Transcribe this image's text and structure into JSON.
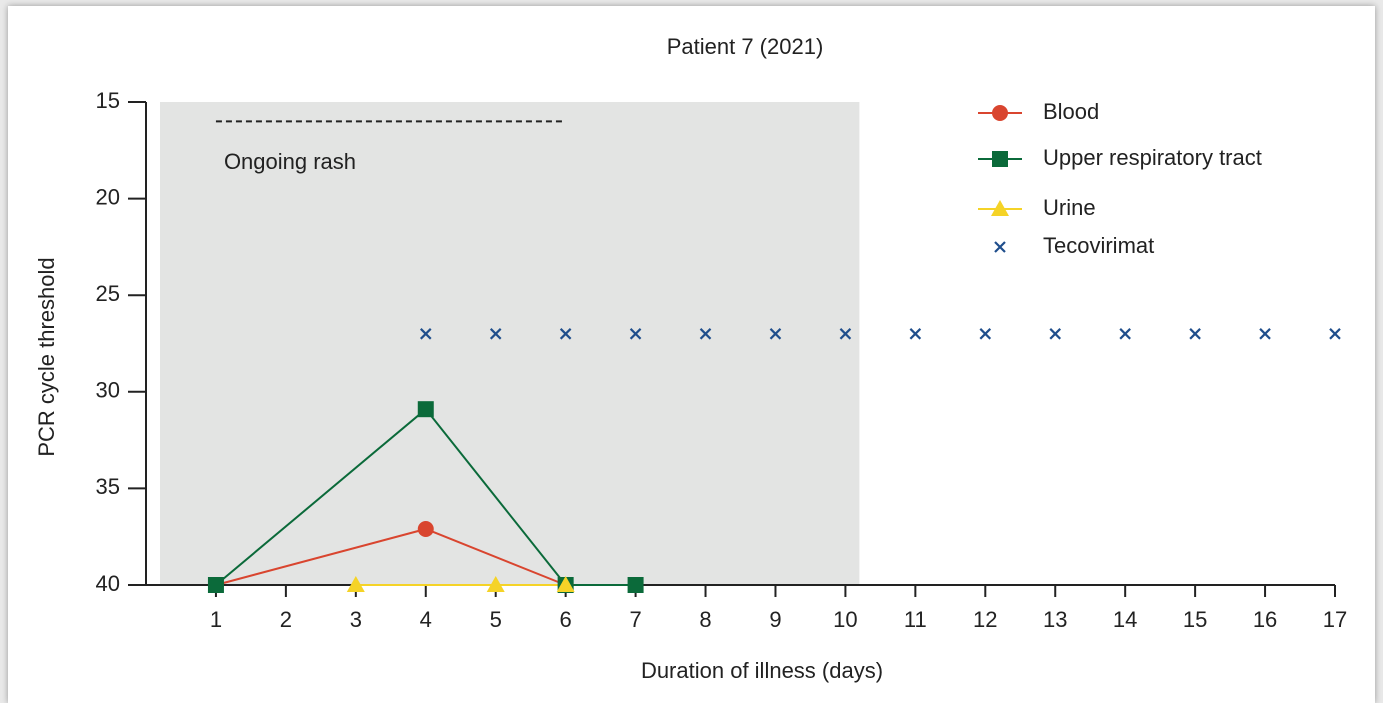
{
  "chart_data": {
    "type": "line",
    "title": "Patient 7 (2021)",
    "x_label": "Duration of illness (days)",
    "y_label": "PCR cycle threshold",
    "xlim": [
      0,
      17
    ],
    "ylim": [
      40,
      15
    ],
    "xticks": [
      1,
      2,
      3,
      4,
      5,
      6,
      7,
      8,
      9,
      10,
      11,
      12,
      13,
      14,
      15,
      16,
      17
    ],
    "yticks": [
      15,
      20,
      25,
      30,
      35,
      40
    ],
    "shaded_xrange": [
      0.2,
      10.2
    ],
    "shaded_color": "#e3e4e3",
    "annotation": {
      "text": "Ongoing rash",
      "x": [
        1,
        6
      ],
      "y": 16
    },
    "legend": "upper right",
    "series": [
      {
        "name": "Blood",
        "color": "#d9452f",
        "marker": "circle",
        "line": true,
        "x": [
          1,
          4,
          6
        ],
        "values": [
          40,
          37.1,
          40
        ]
      },
      {
        "name": "Upper respiratory tract",
        "color": "#0b6a3a",
        "marker": "square",
        "line": true,
        "x": [
          1,
          4,
          6,
          7
        ],
        "values": [
          40,
          30.9,
          40,
          40
        ]
      },
      {
        "name": "Urine",
        "color": "#f5d327",
        "marker": "triangle",
        "line": true,
        "x": [
          3,
          5,
          6
        ],
        "values": [
          40,
          40,
          40
        ]
      },
      {
        "name": "Tecovirimat",
        "color": "#1f4e8c",
        "marker": "x",
        "line": false,
        "x": [
          4,
          5,
          6,
          7,
          8,
          9,
          10,
          11,
          12,
          13,
          14,
          15,
          16,
          17
        ],
        "values": [
          27,
          27,
          27,
          27,
          27,
          27,
          27,
          27,
          27,
          27,
          27,
          27,
          27,
          27
        ]
      }
    ]
  }
}
